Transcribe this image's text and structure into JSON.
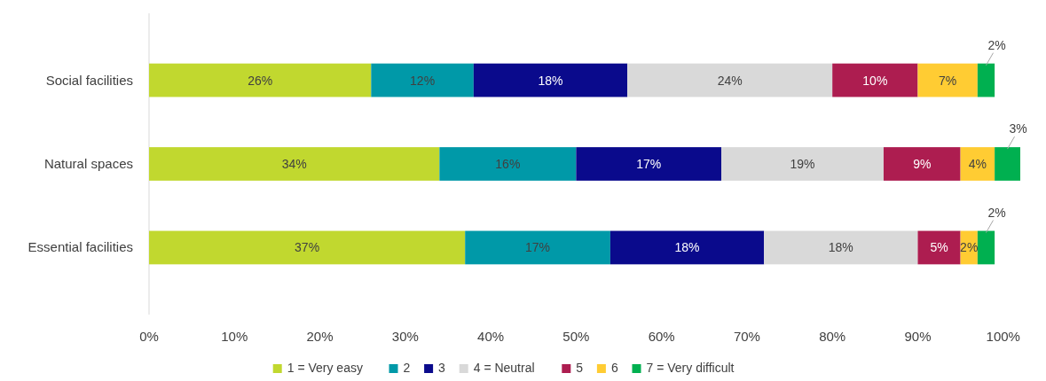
{
  "chart_data": {
    "type": "bar",
    "orientation": "horizontal",
    "stacked": true,
    "categories": [
      "Social facilities",
      "Natural spaces",
      "Essential facilities"
    ],
    "series": [
      {
        "name": "1 = Very easy",
        "color": "#c1d82f",
        "values": [
          26,
          34,
          37
        ],
        "value_labels": [
          "26%",
          "34%",
          "37%"
        ]
      },
      {
        "name": "2",
        "color": "#0099a8",
        "values": [
          12,
          16,
          17
        ],
        "value_labels": [
          "12%",
          "16%",
          "17%"
        ]
      },
      {
        "name": "3",
        "color": "#0a0a8c",
        "values": [
          18,
          17,
          18
        ],
        "value_labels": [
          "18%",
          "17%",
          "18%"
        ]
      },
      {
        "name": "4 = Neutral",
        "color": "#d9d9d9",
        "values": [
          24,
          19,
          18
        ],
        "value_labels": [
          "24%",
          "19%",
          "18%"
        ]
      },
      {
        "name": "5",
        "color": "#ad1d50",
        "values": [
          10,
          9,
          5
        ],
        "value_labels": [
          "10%",
          "9%",
          "5%"
        ]
      },
      {
        "name": "6",
        "color": "#ffcc33",
        "values": [
          7,
          4,
          2
        ],
        "value_labels": [
          "7%",
          "4%",
          "2%"
        ]
      },
      {
        "name": "7 = Very difficult",
        "color": "#00b050",
        "values": [
          2,
          3,
          2
        ],
        "value_labels": [
          "2%",
          "3%",
          "2%"
        ]
      }
    ],
    "xlim": [
      0,
      102
    ],
    "xticks": [
      {
        "value": 0,
        "label": "0%"
      },
      {
        "value": 10,
        "label": "10%"
      },
      {
        "value": 20,
        "label": "20%"
      },
      {
        "value": 30,
        "label": "30%"
      },
      {
        "value": 40,
        "label": "40%"
      },
      {
        "value": 50,
        "label": "50%"
      },
      {
        "value": 60,
        "label": "60%"
      },
      {
        "value": 70,
        "label": "70%"
      },
      {
        "value": 80,
        "label": "80%"
      },
      {
        "value": 90,
        "label": "90%"
      },
      {
        "value": 100,
        "label": "100%"
      }
    ],
    "legend": "bottom"
  }
}
